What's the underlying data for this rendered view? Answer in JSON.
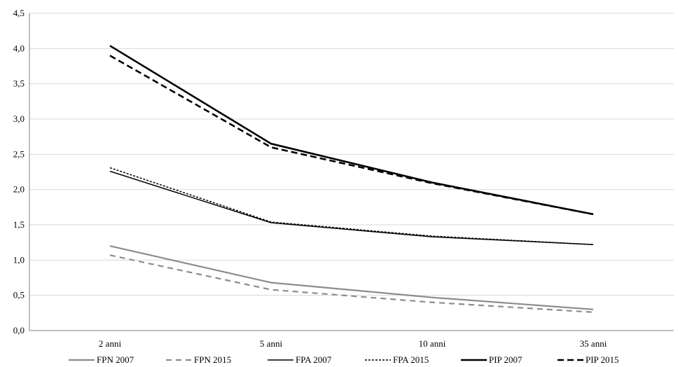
{
  "chart_data": {
    "type": "line",
    "title": "",
    "xlabel": "",
    "ylabel": "",
    "categories": [
      "2 anni",
      "5 anni",
      "10 anni",
      "35 anni"
    ],
    "ylim": [
      0,
      4.5
    ],
    "yticks": [
      "0,0",
      "0,5",
      "1,0",
      "1,5",
      "2,0",
      "2,5",
      "3,0",
      "3,5",
      "4,0",
      "4,5"
    ],
    "grid": true,
    "legend_position": "bottom",
    "series": [
      {
        "name": "FPN 2007",
        "values": [
          1.2,
          0.68,
          0.47,
          0.3
        ],
        "color": "#8c8c8c",
        "dash": "solid",
        "weight": "thin"
      },
      {
        "name": "FPN 2015",
        "values": [
          1.07,
          0.58,
          0.4,
          0.26
        ],
        "color": "#8c8c8c",
        "dash": "dashed",
        "weight": "thin"
      },
      {
        "name": "FPA 2007",
        "values": [
          2.26,
          1.53,
          1.33,
          1.22
        ],
        "color": "#000000",
        "dash": "solid",
        "weight": "thin"
      },
      {
        "name": "FPA 2015",
        "values": [
          2.31,
          1.54,
          1.34,
          1.22
        ],
        "color": "#000000",
        "dash": "dotted",
        "weight": "thin"
      },
      {
        "name": "PIP 2007",
        "values": [
          4.04,
          2.65,
          2.1,
          1.65
        ],
        "color": "#000000",
        "dash": "solid",
        "weight": "thick"
      },
      {
        "name": "PIP 2015",
        "values": [
          3.9,
          2.6,
          2.09,
          1.65
        ],
        "color": "#000000",
        "dash": "dashed",
        "weight": "thick"
      }
    ]
  }
}
